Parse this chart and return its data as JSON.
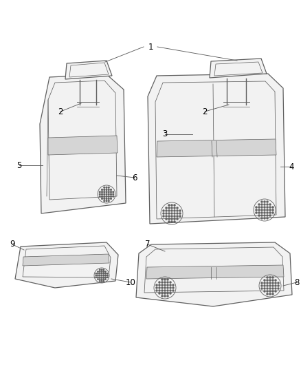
{
  "background_color": "#ffffff",
  "line_color": "#606060",
  "label_color": "#000000",
  "line_width": 0.9,
  "figsize": [
    4.38,
    5.33
  ],
  "dpi": 100,
  "font_size": 8.5
}
